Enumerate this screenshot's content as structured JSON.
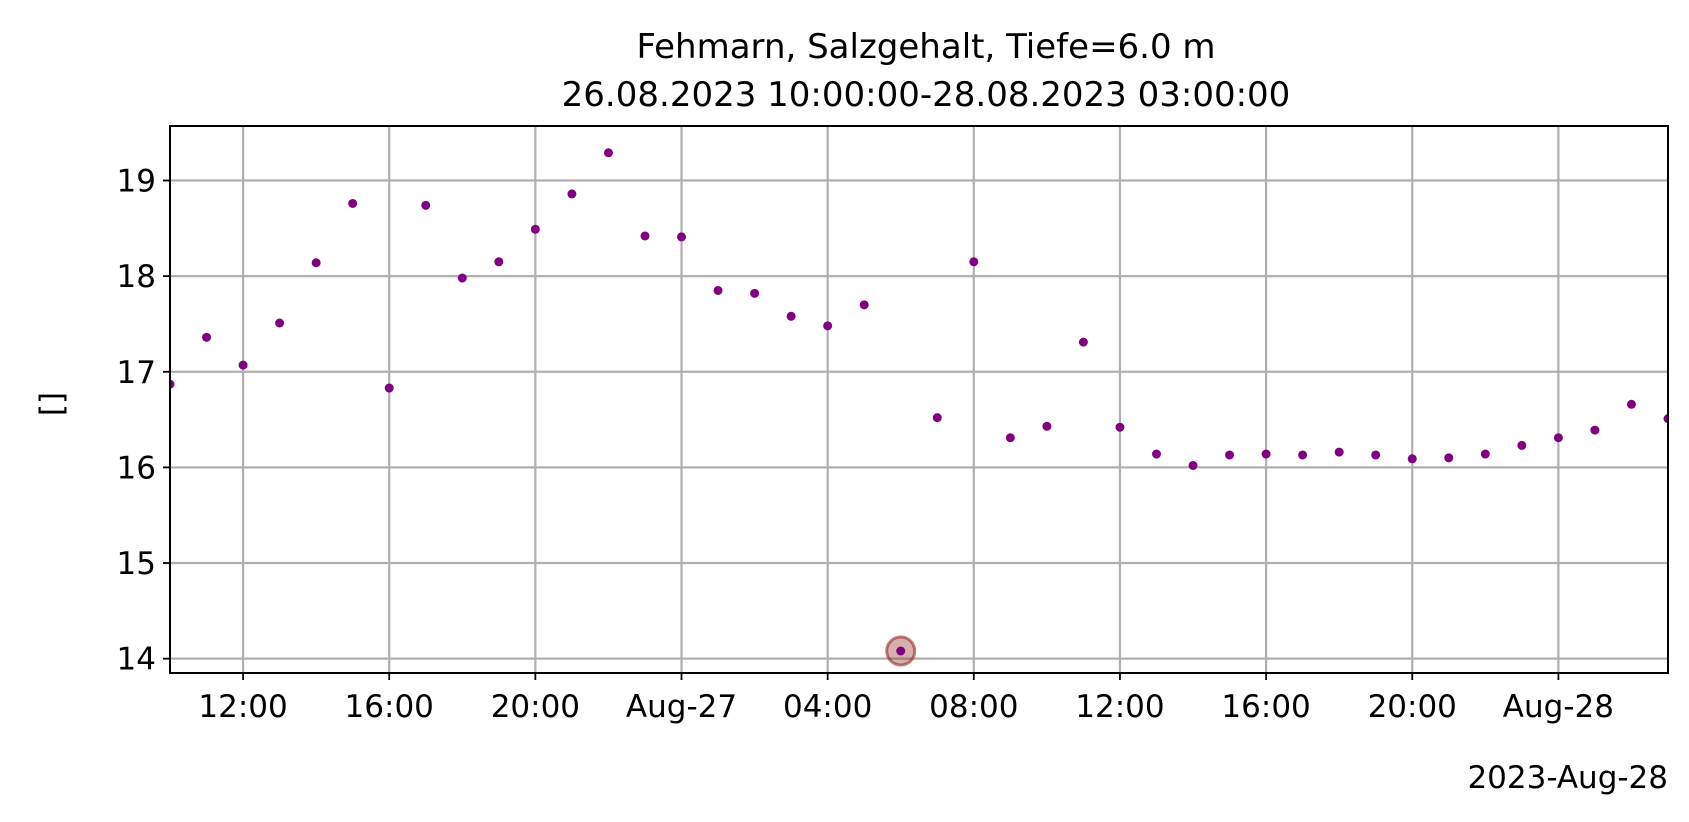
{
  "chart_data": {
    "type": "scatter",
    "title": "Fehmarn, Salzgehalt, Tiefe=6.0 m",
    "subtitle": "26.08.2023 10:00:00-28.08.2023 03:00:00",
    "xlabel": "",
    "ylabel": "[]",
    "x_offset_label": "2023-Aug-28",
    "x_start": "2023-08-26T10:00:00",
    "x_end": "2023-08-28T03:00:00",
    "ylim": [
      13.85,
      19.57
    ],
    "grid": true,
    "legend": "none",
    "point_color": "#800080",
    "highlight_color": "#8b1a1a",
    "x_ticks": [
      {
        "t": "2023-08-26T12:00:00",
        "label": "12:00"
      },
      {
        "t": "2023-08-26T16:00:00",
        "label": "16:00"
      },
      {
        "t": "2023-08-26T20:00:00",
        "label": "20:00"
      },
      {
        "t": "2023-08-27T00:00:00",
        "label": "Aug-27"
      },
      {
        "t": "2023-08-27T04:00:00",
        "label": "04:00"
      },
      {
        "t": "2023-08-27T08:00:00",
        "label": "08:00"
      },
      {
        "t": "2023-08-27T12:00:00",
        "label": "12:00"
      },
      {
        "t": "2023-08-27T16:00:00",
        "label": "16:00"
      },
      {
        "t": "2023-08-27T20:00:00",
        "label": "20:00"
      },
      {
        "t": "2023-08-28T00:00:00",
        "label": "Aug-28"
      }
    ],
    "y_ticks": [
      14,
      15,
      16,
      17,
      18,
      19
    ],
    "points": [
      {
        "t": "2023-08-26T10:00:00",
        "y": 16.87
      },
      {
        "t": "2023-08-26T11:00:00",
        "y": 17.36
      },
      {
        "t": "2023-08-26T12:00:00",
        "y": 17.07
      },
      {
        "t": "2023-08-26T13:00:00",
        "y": 17.51
      },
      {
        "t": "2023-08-26T14:00:00",
        "y": 18.14
      },
      {
        "t": "2023-08-26T15:00:00",
        "y": 18.76
      },
      {
        "t": "2023-08-26T16:00:00",
        "y": 16.83
      },
      {
        "t": "2023-08-26T17:00:00",
        "y": 18.74
      },
      {
        "t": "2023-08-26T18:00:00",
        "y": 17.98
      },
      {
        "t": "2023-08-26T19:00:00",
        "y": 18.15
      },
      {
        "t": "2023-08-26T20:00:00",
        "y": 18.49
      },
      {
        "t": "2023-08-26T21:00:00",
        "y": 18.86
      },
      {
        "t": "2023-08-26T22:00:00",
        "y": 19.29
      },
      {
        "t": "2023-08-26T23:00:00",
        "y": 18.42
      },
      {
        "t": "2023-08-27T00:00:00",
        "y": 18.41
      },
      {
        "t": "2023-08-27T01:00:00",
        "y": 17.85
      },
      {
        "t": "2023-08-27T02:00:00",
        "y": 17.82
      },
      {
        "t": "2023-08-27T03:00:00",
        "y": 17.58
      },
      {
        "t": "2023-08-27T04:00:00",
        "y": 17.48
      },
      {
        "t": "2023-08-27T05:00:00",
        "y": 17.7
      },
      {
        "t": "2023-08-27T06:00:00",
        "y": 14.08,
        "highlight": true
      },
      {
        "t": "2023-08-27T07:00:00",
        "y": 16.52
      },
      {
        "t": "2023-08-27T08:00:00",
        "y": 18.15
      },
      {
        "t": "2023-08-27T09:00:00",
        "y": 16.31
      },
      {
        "t": "2023-08-27T10:00:00",
        "y": 16.43
      },
      {
        "t": "2023-08-27T11:00:00",
        "y": 17.31
      },
      {
        "t": "2023-08-27T12:00:00",
        "y": 16.42
      },
      {
        "t": "2023-08-27T13:00:00",
        "y": 16.14
      },
      {
        "t": "2023-08-27T14:00:00",
        "y": 16.02
      },
      {
        "t": "2023-08-27T15:00:00",
        "y": 16.13
      },
      {
        "t": "2023-08-27T16:00:00",
        "y": 16.14
      },
      {
        "t": "2023-08-27T17:00:00",
        "y": 16.13
      },
      {
        "t": "2023-08-27T18:00:00",
        "y": 16.16
      },
      {
        "t": "2023-08-27T19:00:00",
        "y": 16.13
      },
      {
        "t": "2023-08-27T20:00:00",
        "y": 16.09
      },
      {
        "t": "2023-08-27T21:00:00",
        "y": 16.1
      },
      {
        "t": "2023-08-27T22:00:00",
        "y": 16.14
      },
      {
        "t": "2023-08-27T23:00:00",
        "y": 16.23
      },
      {
        "t": "2023-08-28T00:00:00",
        "y": 16.31
      },
      {
        "t": "2023-08-28T01:00:00",
        "y": 16.39
      },
      {
        "t": "2023-08-28T02:00:00",
        "y": 16.66
      },
      {
        "t": "2023-08-28T03:00:00",
        "y": 16.51
      }
    ]
  }
}
